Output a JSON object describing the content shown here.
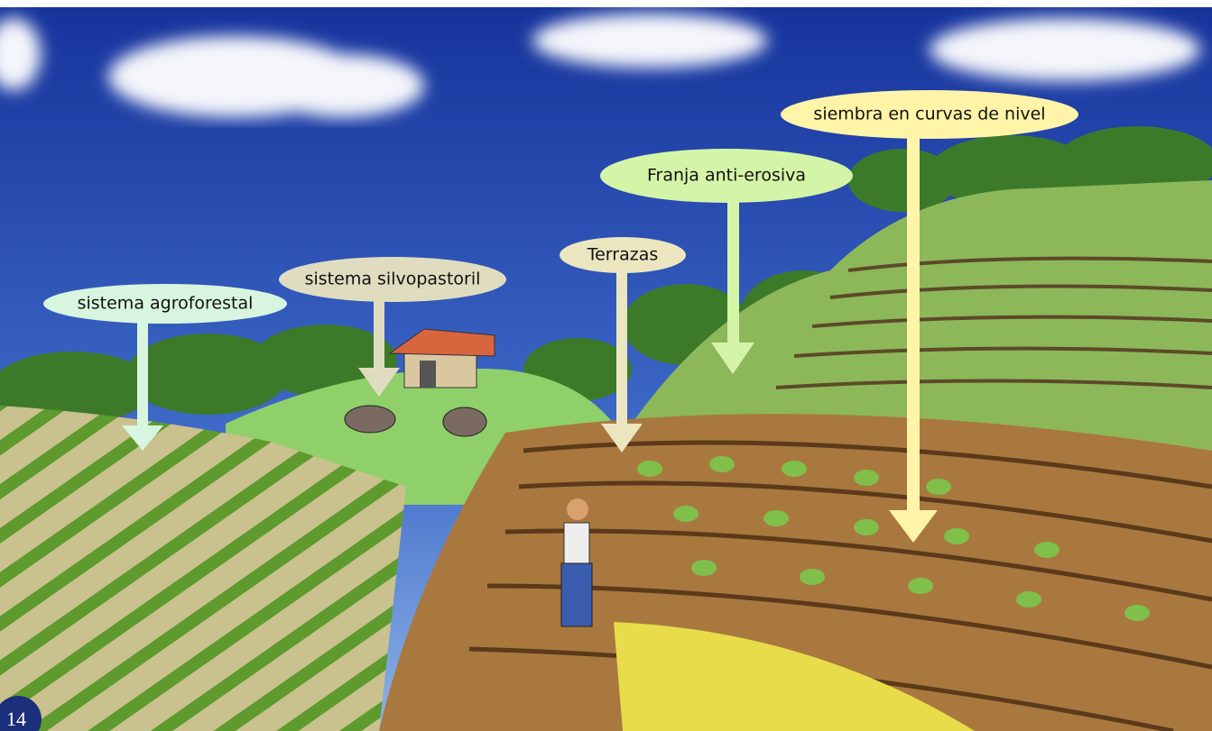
{
  "labels": [
    {
      "text": "sistema agroforestal"
    },
    {
      "text": "sistema silvopastoril"
    },
    {
      "text": "Terrazas"
    },
    {
      "text": "Franja anti-erosiva"
    },
    {
      "text": "siembra en curvas de nivel"
    }
  ],
  "page_number": "14"
}
